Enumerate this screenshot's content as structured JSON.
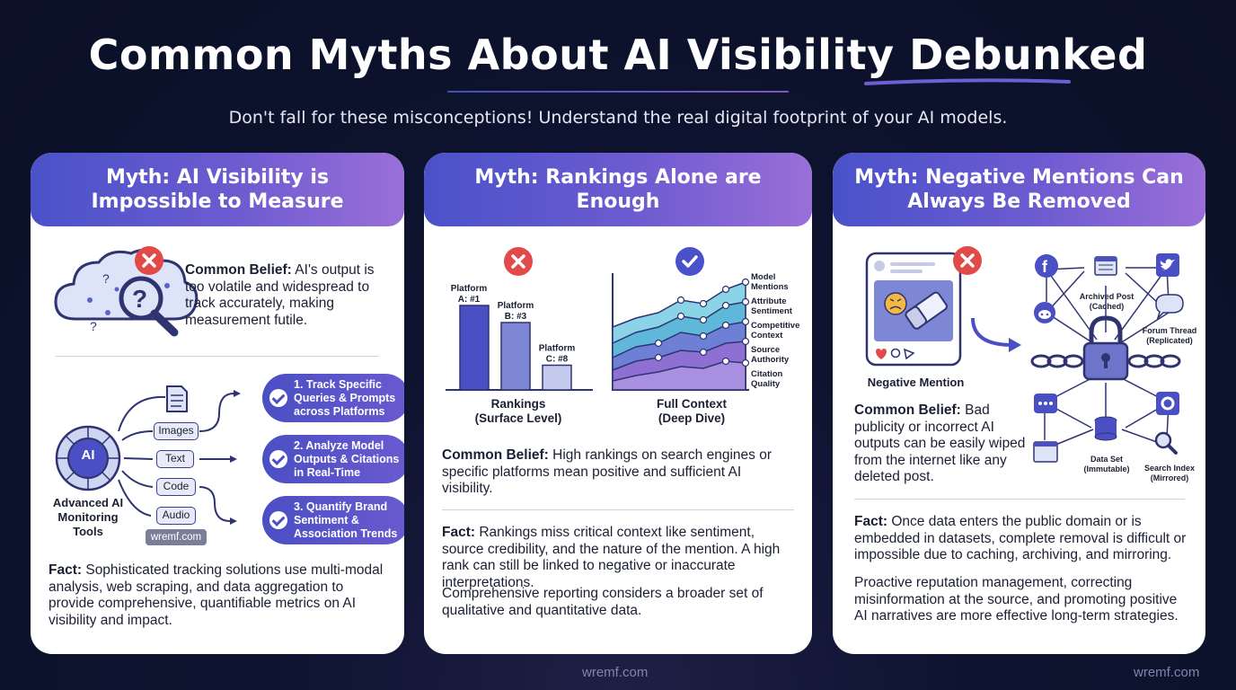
{
  "header": {
    "title": "Common Myths About AI Visibility Debunked",
    "subtitle": "Don't fall for these misconceptions! Understand the real digital footprint of your AI models."
  },
  "cards": [
    {
      "title": "Myth: AI Visibility is Impossible to Measure",
      "belief_label": "Common Belief:",
      "belief_text": " AI's output is too volatile and widespread to track accurately, making measurement futile.",
      "diagram": {
        "hub_label": "AI",
        "tool_label": "Advanced AI Monitoring Tools",
        "inputs": [
          "Images",
          "Text",
          "Code",
          "Audio"
        ],
        "watermark": "wremf.com",
        "steps": [
          "1. Track Specific Queries & Prompts across Platforms",
          "2. Analyze Model Outputs & Citations in Real-Time",
          "3. Quantify Brand Sentiment & Association Trends"
        ]
      },
      "fact_label": "Fact:",
      "fact_text": " Sophisticated tracking solutions use multi-modal analysis, web scraping, and data aggregation to provide comprehensive, quantifiable metrics on AI visibility and impact."
    },
    {
      "title": "Myth: Rankings Alone are Enough",
      "rankings": {
        "bars": [
          {
            "label": "Platform A: #1",
            "line1": "Platform",
            "line2": "A: #1",
            "rank": 1
          },
          {
            "label": "Platform B: #3",
            "line1": "Platform",
            "line2": "B: #3",
            "rank": 3
          },
          {
            "label": "Platform C: #8",
            "line1": "Platform",
            "line2": "C: #8",
            "rank": 8
          }
        ],
        "caption_line1": "Rankings",
        "caption_line2": "(Surface Level)"
      },
      "context": {
        "layers": [
          "Model Mentions",
          "Attribute Sentiment",
          "Competitive Context",
          "Source Authority",
          "Citation Quality"
        ],
        "caption_line1": "Full Context",
        "caption_line2": "(Deep Dive)"
      },
      "belief_label": "Common Belief:",
      "belief_text": " High rankings on search engines or specific platforms mean positive and sufficient AI visibility.",
      "fact_label": "Fact:",
      "fact_text": " Rankings miss critical context like sentiment, source credibility, and the nature of the mention. A high rank can still be linked to negative or inaccurate interpretations.",
      "extra_text": "Comprehensive reporting considers a broader set of qualitative and quantitative data."
    },
    {
      "title": "Myth: Negative Mentions Can Always Be Removed",
      "post_caption": "Negative Mention",
      "network": {
        "archived": "Archived Post (Cached)",
        "forum": "Forum Thread (Replicated)",
        "dataset": "Data Set (Immutable)",
        "search": "Search Index (Mirrored)"
      },
      "belief_label": "Common Belief:",
      "belief_text": " Bad publicity or incorrect AI outputs can be easily wiped from the internet like any deleted post.",
      "fact_label": "Fact:",
      "fact_text": " Once data enters the public domain or is embedded in datasets, complete removal is difficult or impossible due to caching, archiving, and mirroring.",
      "extra_text": "Proactive reputation management, correcting misinformation at the source, and promoting positive AI narratives are more effective long-term strategies."
    }
  ],
  "footer": {
    "center_url": "wremf.com",
    "right_url": "wremf.com"
  },
  "colors": {
    "accent": "#4a52c9",
    "accent_purple": "#9a6fd8",
    "error_red": "#e24a4a",
    "check_blue": "#4a52c9",
    "background": "#0b1028"
  }
}
